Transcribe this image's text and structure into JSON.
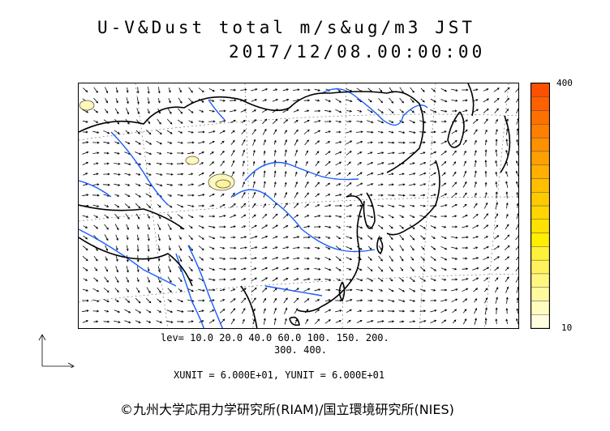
{
  "header": {
    "title": "U-V&Dust total m/s&ug/m3 JST",
    "datetime": "2017/12/08.00:00:00"
  },
  "scale": {
    "max_label": "400",
    "min_label": "10",
    "colors": [
      "#ffffe0",
      "#fffcc0",
      "#fff9a0",
      "#fff680",
      "#fff25c",
      "#fff03a",
      "#ffee00",
      "#ffe200",
      "#ffd600",
      "#ffca00",
      "#ffbe00",
      "#ffb000",
      "#ffa000",
      "#ff9000",
      "#ff8000",
      "#ff7000",
      "#ff6000",
      "#ff5000"
    ]
  },
  "levels": {
    "line1": "lev= 10.0 20.0 40.0 60.0 100. 150. 200.",
    "line2": "300. 400."
  },
  "units": "XUNIT = 6.000E+01, YUNIT = 6.000E+01",
  "credit": "©九州大学応用力学研究所(RIAM)/国立環境研究所(NIES)",
  "map": {
    "coastline_color": "#000000",
    "river_color": "#1a5cff",
    "vector_color": "#000000",
    "dust_fill": "#fff7c0",
    "dust_line": "#555533"
  },
  "icons": {
    "axis": "xy-axis-icon"
  }
}
